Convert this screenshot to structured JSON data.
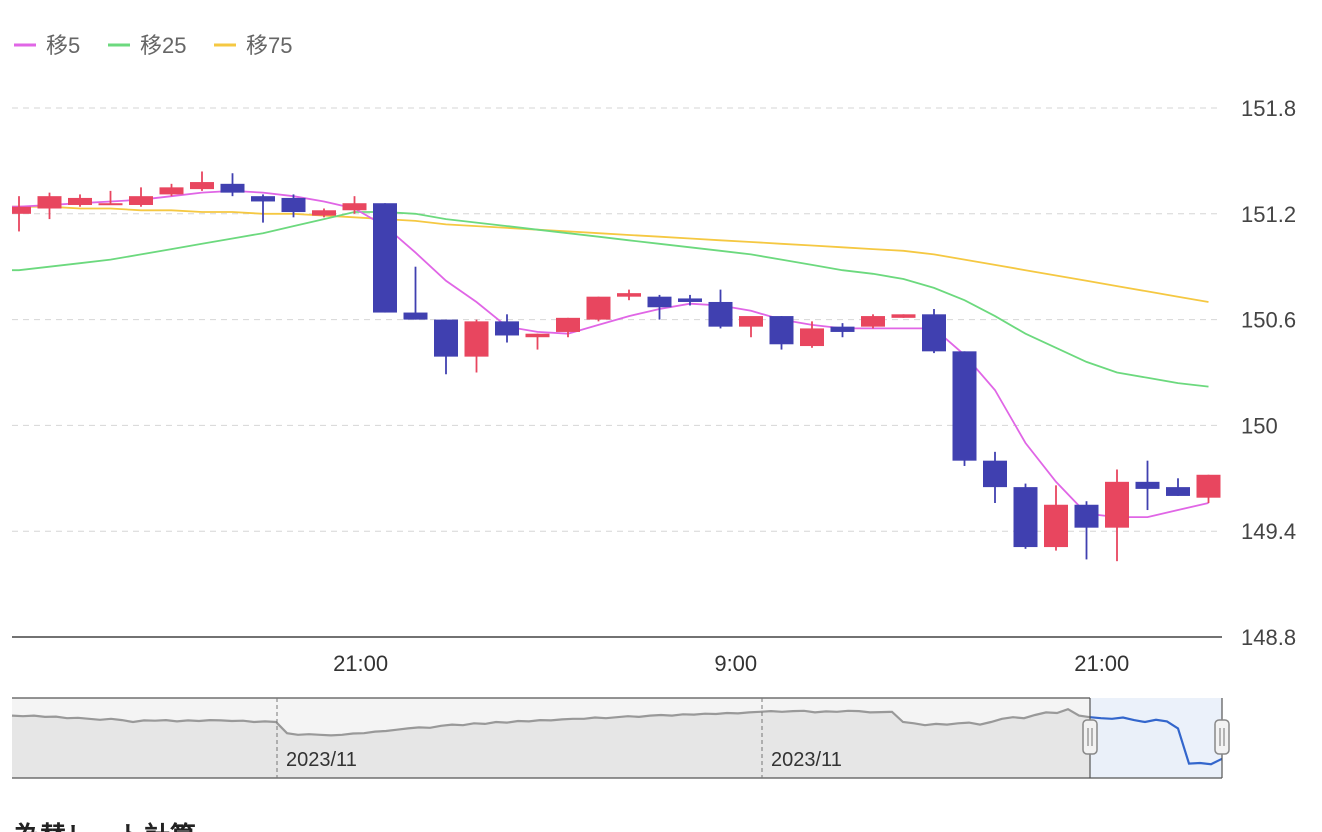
{
  "chart_data": {
    "type": "candlestick",
    "legend": {
      "placement": "top-left",
      "items": [
        {
          "name": "移5",
          "color": "#e066e6"
        },
        {
          "name": "移25",
          "color": "#6cd97e"
        },
        {
          "name": "移75",
          "color": "#f5c842"
        }
      ]
    },
    "colors": {
      "up": "#e8465f",
      "down": "#4040b0",
      "ma5": "#e066e6",
      "ma25": "#6cd97e",
      "ma75": "#f5c842",
      "grid": "#d6d6d6",
      "axis": "#444444",
      "nav_line": "#999999",
      "nav_fill": "#e6e6e6",
      "nav_window_line": "#3366cc",
      "nav_window_fill": "#eaf1fb"
    },
    "y_axis": {
      "position": "right",
      "ticks": [
        "151.8",
        "151.2",
        "150.6",
        "150",
        "149.4",
        "148.8"
      ],
      "range": [
        148.8,
        152.1
      ]
    },
    "x_axis": {
      "ticks": [
        {
          "label": "21:00",
          "index": 11.2
        },
        {
          "label": "9:00",
          "index": 23.5
        },
        {
          "label": "21:00",
          "index": 35.5
        }
      ]
    },
    "grid": true,
    "candles": [
      {
        "o": 151.2,
        "h": 151.3,
        "l": 151.1,
        "c": 151.24
      },
      {
        "o": 151.23,
        "h": 151.32,
        "l": 151.17,
        "c": 151.3
      },
      {
        "o": 151.25,
        "h": 151.31,
        "l": 151.24,
        "c": 151.29
      },
      {
        "o": 151.26,
        "h": 151.33,
        "l": 151.25,
        "c": 151.26
      },
      {
        "o": 151.25,
        "h": 151.35,
        "l": 151.24,
        "c": 151.3
      },
      {
        "o": 151.31,
        "h": 151.37,
        "l": 151.3,
        "c": 151.35
      },
      {
        "o": 151.34,
        "h": 151.44,
        "l": 151.33,
        "c": 151.38
      },
      {
        "o": 151.37,
        "h": 151.43,
        "l": 151.3,
        "c": 151.32
      },
      {
        "o": 151.3,
        "h": 151.31,
        "l": 151.15,
        "c": 151.27
      },
      {
        "o": 151.29,
        "h": 151.31,
        "l": 151.18,
        "c": 151.21
      },
      {
        "o": 151.19,
        "h": 151.23,
        "l": 151.18,
        "c": 151.22
      },
      {
        "o": 151.22,
        "h": 151.3,
        "l": 151.2,
        "c": 151.26
      },
      {
        "o": 151.26,
        "h": 151.26,
        "l": 150.64,
        "c": 150.64
      },
      {
        "o": 150.64,
        "h": 150.9,
        "l": 150.6,
        "c": 150.6
      },
      {
        "o": 150.6,
        "h": 150.6,
        "l": 150.29,
        "c": 150.39
      },
      {
        "o": 150.39,
        "h": 150.6,
        "l": 150.3,
        "c": 150.59
      },
      {
        "o": 150.59,
        "h": 150.63,
        "l": 150.47,
        "c": 150.51
      },
      {
        "o": 150.5,
        "h": 150.52,
        "l": 150.43,
        "c": 150.52
      },
      {
        "o": 150.53,
        "h": 150.61,
        "l": 150.5,
        "c": 150.61
      },
      {
        "o": 150.6,
        "h": 150.73,
        "l": 150.59,
        "c": 150.73
      },
      {
        "o": 150.73,
        "h": 150.77,
        "l": 150.71,
        "c": 150.75
      },
      {
        "o": 150.73,
        "h": 150.74,
        "l": 150.6,
        "c": 150.67
      },
      {
        "o": 150.72,
        "h": 150.74,
        "l": 150.68,
        "c": 150.7
      },
      {
        "o": 150.7,
        "h": 150.77,
        "l": 150.55,
        "c": 150.56
      },
      {
        "o": 150.56,
        "h": 150.61,
        "l": 150.5,
        "c": 150.62
      },
      {
        "o": 150.62,
        "h": 150.62,
        "l": 150.43,
        "c": 150.46
      },
      {
        "o": 150.45,
        "h": 150.59,
        "l": 150.44,
        "c": 150.55
      },
      {
        "o": 150.56,
        "h": 150.58,
        "l": 150.5,
        "c": 150.53
      },
      {
        "o": 150.56,
        "h": 150.63,
        "l": 150.55,
        "c": 150.62
      },
      {
        "o": 150.61,
        "h": 150.63,
        "l": 150.61,
        "c": 150.63
      },
      {
        "o": 150.63,
        "h": 150.66,
        "l": 150.41,
        "c": 150.42
      },
      {
        "o": 150.42,
        "h": 150.42,
        "l": 149.77,
        "c": 149.8
      },
      {
        "o": 149.8,
        "h": 149.85,
        "l": 149.56,
        "c": 149.65
      },
      {
        "o": 149.65,
        "h": 149.67,
        "l": 149.3,
        "c": 149.31
      },
      {
        "o": 149.31,
        "h": 149.66,
        "l": 149.29,
        "c": 149.55
      },
      {
        "o": 149.55,
        "h": 149.57,
        "l": 149.24,
        "c": 149.42
      },
      {
        "o": 149.42,
        "h": 149.75,
        "l": 149.23,
        "c": 149.68
      },
      {
        "o": 149.68,
        "h": 149.8,
        "l": 149.52,
        "c": 149.64
      },
      {
        "o": 149.65,
        "h": 149.7,
        "l": 149.6,
        "c": 149.6
      },
      {
        "o": 149.59,
        "h": 149.72,
        "l": 149.56,
        "c": 149.72
      }
    ],
    "ma5": [
      151.24,
      151.25,
      151.26,
      151.27,
      151.28,
      151.3,
      151.32,
      151.33,
      151.32,
      151.3,
      151.27,
      151.23,
      151.13,
      150.98,
      150.82,
      150.7,
      150.56,
      150.53,
      150.52,
      150.57,
      150.62,
      150.66,
      150.69,
      150.68,
      150.65,
      150.6,
      150.57,
      150.55,
      150.55,
      150.55,
      150.55,
      150.4,
      150.2,
      149.9,
      149.68,
      149.5,
      149.48,
      149.48,
      149.52,
      149.56
    ],
    "ma25": [
      150.88,
      150.9,
      150.92,
      150.94,
      150.97,
      151.0,
      151.03,
      151.06,
      151.09,
      151.13,
      151.17,
      151.21,
      151.21,
      151.2,
      151.17,
      151.15,
      151.13,
      151.11,
      151.09,
      151.07,
      151.05,
      151.03,
      151.01,
      150.99,
      150.97,
      150.94,
      150.91,
      150.88,
      150.86,
      150.83,
      150.78,
      150.71,
      150.62,
      150.52,
      150.44,
      150.36,
      150.3,
      150.27,
      150.24,
      150.22
    ],
    "ma75": [
      151.24,
      151.24,
      151.23,
      151.23,
      151.22,
      151.22,
      151.21,
      151.21,
      151.2,
      151.2,
      151.19,
      151.18,
      151.17,
      151.16,
      151.14,
      151.13,
      151.12,
      151.11,
      151.1,
      151.09,
      151.08,
      151.07,
      151.06,
      151.05,
      151.04,
      151.03,
      151.02,
      151.01,
      151.0,
      150.99,
      150.97,
      150.94,
      150.91,
      150.88,
      150.85,
      150.82,
      150.79,
      150.76,
      150.73,
      150.7
    ],
    "navigator": {
      "labels": [
        "2023/11",
        "2023/11"
      ],
      "series": [
        151.1,
        151.08,
        151.1,
        151.06,
        151.07,
        151.02,
        151.03,
        151.0,
        150.97,
        151.0,
        150.96,
        150.9,
        150.95,
        150.94,
        150.96,
        150.92,
        150.95,
        150.93,
        150.96,
        150.95,
        150.93,
        150.94,
        150.9,
        150.92,
        150.9,
        150.55,
        150.5,
        150.52,
        150.5,
        150.48,
        150.5,
        150.54,
        150.55,
        150.6,
        150.62,
        150.66,
        150.7,
        150.73,
        150.72,
        150.78,
        150.82,
        150.8,
        150.86,
        150.84,
        150.9,
        150.88,
        150.93,
        150.92,
        150.96,
        150.95,
        150.98,
        151.0,
        151.0,
        151.04,
        151.02,
        151.05,
        151.08,
        151.06,
        151.1,
        151.12,
        151.1,
        151.14,
        151.13,
        151.16,
        151.15,
        151.18,
        151.17,
        151.2,
        151.22,
        151.24,
        151.22,
        151.24,
        151.25,
        151.2,
        151.23,
        151.22,
        151.25,
        151.24,
        151.2,
        151.21,
        151.22,
        150.9,
        150.86,
        150.8,
        150.84,
        150.82,
        150.86,
        150.88,
        150.82,
        150.9,
        151.0,
        151.05,
        151.02,
        151.12,
        151.2,
        151.18,
        151.3,
        151.1,
        151.05,
        151.02,
        151.0,
        151.04,
        150.96,
        150.9,
        150.97,
        150.92,
        150.7,
        149.6,
        149.62,
        149.58,
        149.75
      ],
      "window_start_index": 98
    },
    "footer_text": "為替レート計算"
  }
}
